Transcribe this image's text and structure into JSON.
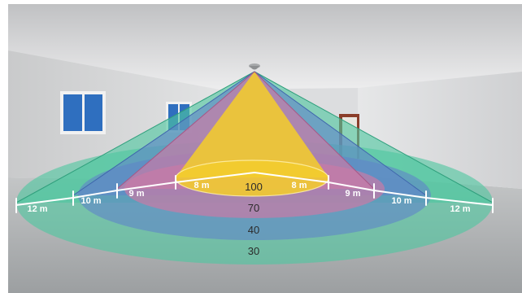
{
  "colors": {
    "zone_100": "#f2cc2e",
    "zone_70": "#c97aa6",
    "zone_40": "#5f86c8",
    "zone_30": "#4fc7a0",
    "window": "#2f6fbf",
    "door": "#8a3d2a"
  },
  "diagram": {
    "zones": [
      {
        "level": "100",
        "radius": "8 m"
      },
      {
        "level": "70",
        "radius": "9 m"
      },
      {
        "level": "40",
        "radius": "10 m"
      },
      {
        "level": "30",
        "radius": "12 m"
      }
    ]
  }
}
